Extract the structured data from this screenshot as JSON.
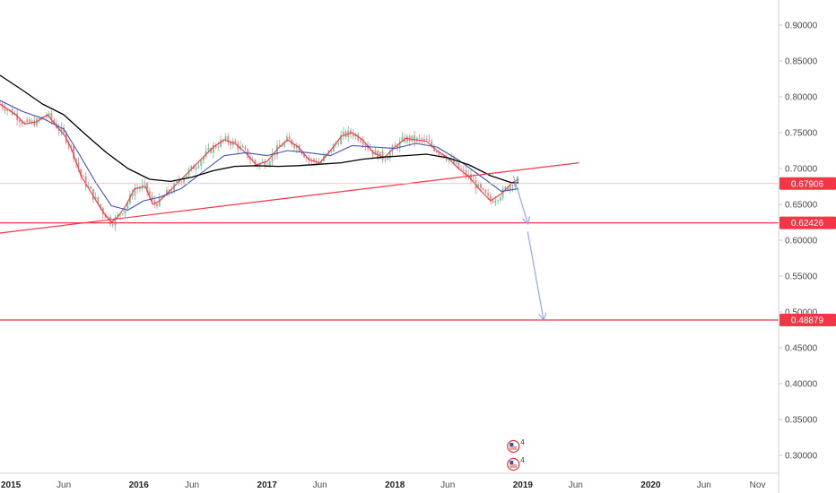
{
  "chart_data": {
    "type": "candlestick",
    "y_axis": {
      "ticks": [
        "0.90000",
        "0.85000",
        "0.80000",
        "0.75000",
        "0.70000",
        "0.65000",
        "0.60000",
        "0.55000",
        "0.50000",
        "0.45000",
        "0.40000",
        "0.35000",
        "0.30000"
      ],
      "ylim": [
        0.275,
        0.935
      ],
      "grid": false
    },
    "x_axis": {
      "ticks": [
        {
          "label": "2015",
          "x": "2015-01",
          "bold": true
        },
        {
          "label": "Jun",
          "x": "2015-06"
        },
        {
          "label": "2016",
          "x": "2016-01",
          "bold": true
        },
        {
          "label": "Jun",
          "x": "2016-06"
        },
        {
          "label": "2017",
          "x": "2017-01",
          "bold": true
        },
        {
          "label": "Jun",
          "x": "2017-06"
        },
        {
          "label": "2018",
          "x": "2018-01",
          "bold": true
        },
        {
          "label": "Jun",
          "x": "2018-06"
        },
        {
          "label": "2019",
          "x": "2019-01",
          "bold": true
        },
        {
          "label": "Jun",
          "x": "2019-06"
        },
        {
          "label": "2020",
          "x": "2020-01",
          "bold": true
        },
        {
          "label": "Jun",
          "x": "2020-06"
        },
        {
          "label": "Nov",
          "x": "2020-11"
        }
      ]
    },
    "price_series": [
      [
        "2014-12-01",
        0.79
      ],
      [
        "2015-01-15",
        0.775
      ],
      [
        "2015-02-10",
        0.762
      ],
      [
        "2015-03-15",
        0.765
      ],
      [
        "2015-04-15",
        0.775
      ],
      [
        "2015-05-10",
        0.76
      ],
      [
        "2015-06-05",
        0.745
      ],
      [
        "2015-06-25",
        0.725
      ],
      [
        "2015-07-20",
        0.69
      ],
      [
        "2015-08-20",
        0.665
      ],
      [
        "2015-09-20",
        0.64
      ],
      [
        "2015-10-15",
        0.625
      ],
      [
        "2015-11-01",
        0.632
      ],
      [
        "2015-11-25",
        0.648
      ],
      [
        "2015-12-20",
        0.672
      ],
      [
        "2016-01-20",
        0.675
      ],
      [
        "2016-02-10",
        0.65
      ],
      [
        "2016-03-01",
        0.655
      ],
      [
        "2016-04-01",
        0.67
      ],
      [
        "2016-05-01",
        0.685
      ],
      [
        "2016-06-01",
        0.7
      ],
      [
        "2016-07-01",
        0.715
      ],
      [
        "2016-08-01",
        0.73
      ],
      [
        "2016-09-01",
        0.74
      ],
      [
        "2016-10-01",
        0.735
      ],
      [
        "2016-11-01",
        0.722
      ],
      [
        "2016-12-01",
        0.705
      ],
      [
        "2017-01-01",
        0.71
      ],
      [
        "2017-02-01",
        0.728
      ],
      [
        "2017-03-01",
        0.74
      ],
      [
        "2017-04-01",
        0.73
      ],
      [
        "2017-05-01",
        0.712
      ],
      [
        "2017-06-01",
        0.708
      ],
      [
        "2017-07-01",
        0.725
      ],
      [
        "2017-08-01",
        0.745
      ],
      [
        "2017-09-01",
        0.75
      ],
      [
        "2017-10-01",
        0.74
      ],
      [
        "2017-11-01",
        0.722
      ],
      [
        "2017-12-01",
        0.715
      ],
      [
        "2018-01-01",
        0.73
      ],
      [
        "2018-02-01",
        0.742
      ],
      [
        "2018-03-01",
        0.74
      ],
      [
        "2018-04-01",
        0.738
      ],
      [
        "2018-05-01",
        0.725
      ],
      [
        "2018-06-01",
        0.715
      ],
      [
        "2018-07-01",
        0.7
      ],
      [
        "2018-08-01",
        0.688
      ],
      [
        "2018-09-01",
        0.67
      ],
      [
        "2018-10-01",
        0.655
      ],
      [
        "2018-11-01",
        0.665
      ],
      [
        "2018-12-01",
        0.68
      ],
      [
        "2018-12-20",
        0.685
      ]
    ],
    "ma_fast_series": [
      [
        "2014-12-01",
        0.795
      ],
      [
        "2015-02-01",
        0.78
      ],
      [
        "2015-04-01",
        0.77
      ],
      [
        "2015-06-01",
        0.755
      ],
      [
        "2015-07-15",
        0.72
      ],
      [
        "2015-09-01",
        0.68
      ],
      [
        "2015-10-15",
        0.648
      ],
      [
        "2015-12-01",
        0.642
      ],
      [
        "2016-01-15",
        0.655
      ],
      [
        "2016-03-01",
        0.66
      ],
      [
        "2016-05-01",
        0.672
      ],
      [
        "2016-07-01",
        0.695
      ],
      [
        "2016-09-01",
        0.718
      ],
      [
        "2016-11-01",
        0.722
      ],
      [
        "2017-01-01",
        0.718
      ],
      [
        "2017-03-01",
        0.725
      ],
      [
        "2017-05-01",
        0.722
      ],
      [
        "2017-07-01",
        0.718
      ],
      [
        "2017-09-01",
        0.732
      ],
      [
        "2017-11-01",
        0.73
      ],
      [
        "2018-01-01",
        0.728
      ],
      [
        "2018-03-01",
        0.735
      ],
      [
        "2018-05-01",
        0.73
      ],
      [
        "2018-07-01",
        0.712
      ],
      [
        "2018-09-01",
        0.69
      ],
      [
        "2018-11-01",
        0.668
      ],
      [
        "2018-12-20",
        0.672
      ]
    ],
    "ma_slow_series": [
      [
        "2014-12-01",
        0.83
      ],
      [
        "2015-02-01",
        0.81
      ],
      [
        "2015-04-01",
        0.79
      ],
      [
        "2015-06-01",
        0.775
      ],
      [
        "2015-08-01",
        0.748
      ],
      [
        "2015-10-01",
        0.722
      ],
      [
        "2015-12-01",
        0.7
      ],
      [
        "2016-02-01",
        0.685
      ],
      [
        "2016-04-01",
        0.682
      ],
      [
        "2016-06-01",
        0.688
      ],
      [
        "2016-08-01",
        0.697
      ],
      [
        "2016-10-01",
        0.703
      ],
      [
        "2016-12-01",
        0.704
      ],
      [
        "2017-02-01",
        0.703
      ],
      [
        "2017-04-01",
        0.704
      ],
      [
        "2017-06-01",
        0.706
      ],
      [
        "2017-08-01",
        0.708
      ],
      [
        "2017-10-01",
        0.713
      ],
      [
        "2017-12-01",
        0.716
      ],
      [
        "2018-02-01",
        0.718
      ],
      [
        "2018-04-01",
        0.72
      ],
      [
        "2018-06-01",
        0.715
      ],
      [
        "2018-08-01",
        0.705
      ],
      [
        "2018-10-01",
        0.69
      ],
      [
        "2018-12-01",
        0.68
      ],
      [
        "2018-12-20",
        0.68
      ]
    ],
    "trendline": {
      "from": [
        "2014-12-01",
        0.61
      ],
      "to": [
        "2019-06-10",
        0.708
      ]
    },
    "horizontal_levels": [
      {
        "value": 0.62426,
        "label": "0.62426",
        "color": "#f23645"
      },
      {
        "value": 0.48879,
        "label": "0.48879",
        "color": "#f23645"
      }
    ],
    "current_price": {
      "value": 0.67906,
      "label": "0.67906",
      "color": "#f23645"
    },
    "projection_arrows": [
      {
        "from": [
          "2018-12-05",
          0.69
        ],
        "to": [
          "2019-01-15",
          0.624
        ]
      },
      {
        "from": [
          "2019-01-15",
          0.612
        ],
        "to": [
          "2019-03-01",
          0.49
        ]
      }
    ],
    "event_markers": [
      {
        "x": "2018-12-05",
        "count": "4"
      },
      {
        "x": "2018-12-05",
        "count": "4"
      }
    ],
    "colors": {
      "price": "#f23645",
      "ma_fast": "#3f51b5",
      "ma_slow": "#000000",
      "trendline": "#f23645",
      "arrow": "#8c9eff"
    }
  }
}
